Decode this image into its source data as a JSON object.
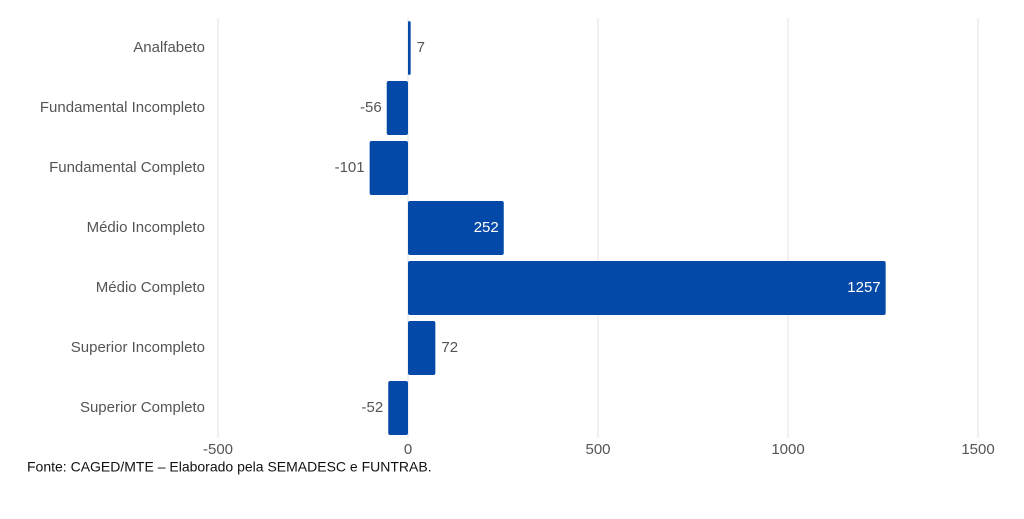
{
  "chart_data": {
    "type": "bar",
    "orientation": "horizontal",
    "categories": [
      "Analfabeto",
      "Fundamental Incompleto",
      "Fundamental Completo",
      "Médio Incompleto",
      "Médio Completo",
      "Superior Incompleto",
      "Superior Completo"
    ],
    "values": [
      7,
      -56,
      -101,
      252,
      1257,
      72,
      -52
    ],
    "color": "#0449a8",
    "xlim": [
      -500,
      1500
    ],
    "xticks": [
      -500,
      0,
      500,
      1000,
      1500
    ],
    "grid": true,
    "source": "Fonte: CAGED/MTE – Elaborado pela SEMADESC e FUNTRAB."
  }
}
